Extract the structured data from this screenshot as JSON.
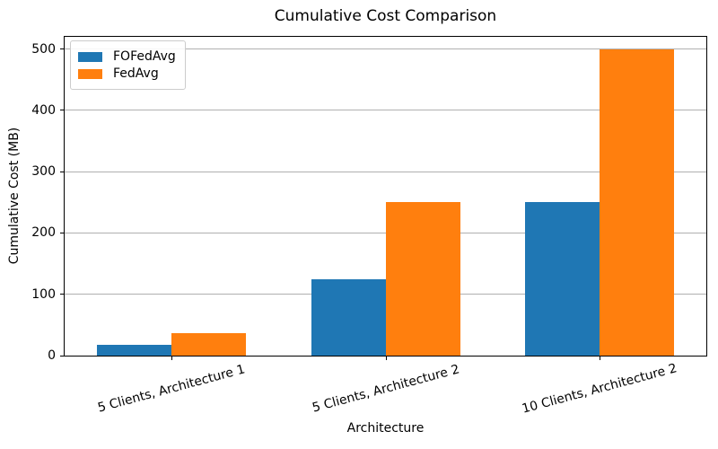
{
  "chart_data": {
    "type": "bar",
    "title": "Cumulative Cost Comparison",
    "xlabel": "Architecture",
    "ylabel": "Cumulative Cost (MB)",
    "categories": [
      "5 Clients, Architecture 1",
      "5 Clients, Architecture 2",
      "10 Clients, Architecture 2"
    ],
    "series": [
      {
        "name": "FOFedAvg",
        "color": "#1f77b4",
        "values": [
          18,
          125,
          250
        ]
      },
      {
        "name": "FedAvg",
        "color": "#ff7f0e",
        "values": [
          36,
          250,
          500
        ]
      }
    ],
    "yticks": [
      0,
      100,
      200,
      300,
      400,
      500
    ],
    "ylim": [
      0,
      520
    ],
    "bar_width_units": 0.35,
    "grid": "horizontal",
    "gridline_color": "#b0b0b0",
    "legend_position": "upper left",
    "xtick_rotation_deg": 15
  }
}
